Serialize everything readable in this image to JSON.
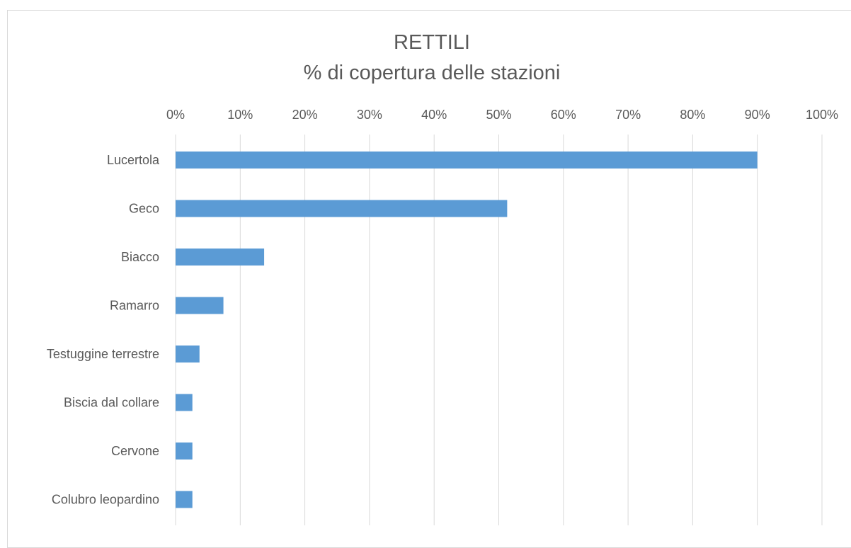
{
  "chart_data": {
    "type": "bar",
    "orientation": "horizontal",
    "title": "RETTILI",
    "subtitle": "% di copertura delle stazioni",
    "xlabel": "",
    "ylabel": "",
    "categories": [
      "Lucertola",
      "Geco",
      "Biacco",
      "Ramarro",
      "Testuggine terrestre",
      "Biscia dal collare",
      "Cervone",
      "Colubro leopardino"
    ],
    "values": [
      90,
      51.3,
      13.7,
      7.4,
      3.7,
      2.6,
      2.6,
      2.6
    ],
    "xlim": [
      0,
      100
    ],
    "ticks": [
      "0%",
      "10%",
      "20%",
      "30%",
      "40%",
      "50%",
      "60%",
      "70%",
      "80%",
      "90%",
      "100%"
    ],
    "tick_values": [
      0,
      10,
      20,
      30,
      40,
      50,
      60,
      70,
      80,
      90,
      100
    ],
    "x_axis_position": "top",
    "grid": true,
    "legend": "none",
    "bar_color": "#5b9bd5",
    "grid_color": "#d9d9d9"
  }
}
